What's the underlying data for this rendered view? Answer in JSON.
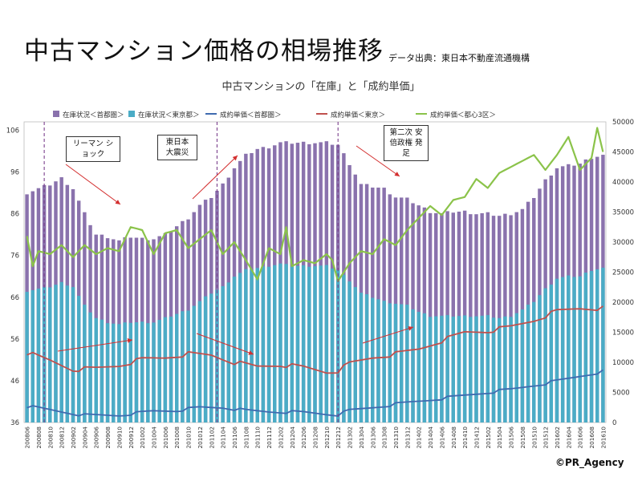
{
  "page": {
    "title": "中古マンション価格の相場推移",
    "source": "データ出典：東日本不動産流通機構",
    "credit": "©PR_Agency"
  },
  "annotations": {
    "lehman": "リーマン ショック",
    "quake": "東日本 大震災",
    "abe": "第二次 安倍政権 発足"
  },
  "colors": {
    "stock_metro": "#8a72ad",
    "stock_tokyo": "#4bacc6",
    "price_metro": "#3f6bb0",
    "price_tokyo": "#c0504d",
    "price_central": "#8bc34a",
    "arrow": "#d32f2f",
    "marker": "#7b3f8c"
  },
  "chart_data": {
    "type": "bar+line",
    "title": "中古マンションの「在庫」と「成約単価」",
    "legend": [
      "在庫状況＜首都圏＞",
      "在庫状況＜東京都＞",
      "成約単価＜首都圏＞",
      "成約単価＜東京＞",
      "成約単価＜都心3区＞"
    ],
    "legend_position": "top",
    "x_tick_labels": [
      "200806",
      "200808",
      "200810",
      "200812",
      "200902",
      "200904",
      "200906",
      "200908",
      "200910",
      "200912",
      "201002",
      "201004",
      "201006",
      "201008",
      "201010",
      "201012",
      "201102",
      "201104",
      "201106",
      "201108",
      "201110",
      "201112",
      "201202",
      "201204",
      "201206",
      "201208",
      "201210",
      "201212",
      "201302",
      "201304",
      "201306",
      "201308",
      "201310",
      "201312",
      "201402",
      "201404",
      "201406",
      "201408",
      "201410",
      "201412",
      "201502",
      "201504",
      "201506",
      "201508",
      "201510",
      "201512",
      "201602",
      "201604",
      "201606",
      "201608",
      "201610"
    ],
    "y_left_ticks": [
      36,
      46,
      56,
      66,
      76,
      86,
      96,
      106
    ],
    "y_left_range": [
      36,
      108
    ],
    "y_right_ticks": [
      0,
      5000,
      10000,
      15000,
      20000,
      25000,
      30000,
      35000,
      40000,
      45000,
      50000
    ],
    "y_right_range": [
      0,
      50000
    ],
    "event_markers": [
      {
        "label": "リーマン ショック",
        "at": "200809"
      },
      {
        "label": "東日本 大震災",
        "at": "201103"
      },
      {
        "label": "第二次 安倍政権 発足",
        "at": "201212"
      }
    ],
    "series": [
      {
        "name": "在庫状況＜首都圏＞",
        "axis": "left",
        "kind": "bar",
        "anchors": [
          [
            "200806",
            91
          ],
          [
            "200810",
            93
          ],
          [
            "200812",
            94.5
          ],
          [
            "200902",
            92
          ],
          [
            "200904",
            86
          ],
          [
            "200906",
            81
          ],
          [
            "200908",
            80.5
          ],
          [
            "200910",
            79.5
          ],
          [
            "200912",
            80.5
          ],
          [
            "201002",
            80
          ],
          [
            "201004",
            80
          ],
          [
            "201006",
            81
          ],
          [
            "201008",
            83
          ],
          [
            "201010",
            85
          ],
          [
            "201012",
            88
          ],
          [
            "201102",
            90
          ],
          [
            "201104",
            93
          ],
          [
            "201106",
            97
          ],
          [
            "201108",
            100
          ],
          [
            "201110",
            101.5
          ],
          [
            "201112",
            102
          ],
          [
            "201202",
            103
          ],
          [
            "201204",
            103
          ],
          [
            "201206",
            103
          ],
          [
            "201208",
            103
          ],
          [
            "201210",
            103
          ],
          [
            "201212",
            102.5
          ],
          [
            "201302",
            98
          ],
          [
            "201304",
            93
          ],
          [
            "201306",
            92.5
          ],
          [
            "201308",
            92
          ],
          [
            "201310",
            90
          ],
          [
            "201312",
            89.5
          ],
          [
            "201402",
            88
          ],
          [
            "201404",
            86.5
          ],
          [
            "201406",
            86
          ],
          [
            "201408",
            86.5
          ],
          [
            "201410",
            86.5
          ],
          [
            "201412",
            86
          ],
          [
            "201502",
            86
          ],
          [
            "201504",
            85.5
          ],
          [
            "201506",
            86
          ],
          [
            "201508",
            87
          ],
          [
            "201510",
            90
          ],
          [
            "201512",
            94
          ],
          [
            "201602",
            97
          ],
          [
            "201604",
            97.5
          ],
          [
            "201606",
            98
          ],
          [
            "201608",
            99.5
          ],
          [
            "201610",
            100
          ]
        ]
      },
      {
        "name": "在庫状況＜東京都＞",
        "axis": "left",
        "kind": "bar",
        "anchors": [
          [
            "200806",
            67.5
          ],
          [
            "200810",
            68.5
          ],
          [
            "200812",
            69.5
          ],
          [
            "200902",
            68.5
          ],
          [
            "200904",
            64
          ],
          [
            "200906",
            61
          ],
          [
            "200908",
            60
          ],
          [
            "200910",
            59.5
          ],
          [
            "200912",
            60
          ],
          [
            "201002",
            60
          ],
          [
            "201004",
            60
          ],
          [
            "201006",
            61
          ],
          [
            "201008",
            62
          ],
          [
            "201010",
            63
          ],
          [
            "201012",
            65
          ],
          [
            "201102",
            67
          ],
          [
            "201104",
            68.5
          ],
          [
            "201106",
            71
          ],
          [
            "201108",
            72.5
          ],
          [
            "201110",
            73
          ],
          [
            "201112",
            73.5
          ],
          [
            "201202",
            74
          ],
          [
            "201204",
            73.5
          ],
          [
            "201206",
            73.5
          ],
          [
            "201208",
            73.5
          ],
          [
            "201210",
            73.5
          ],
          [
            "201212",
            72.5
          ],
          [
            "201302",
            70
          ],
          [
            "201304",
            67
          ],
          [
            "201306",
            66
          ],
          [
            "201308",
            65
          ],
          [
            "201310",
            64.5
          ],
          [
            "201312",
            64
          ],
          [
            "201402",
            62.5
          ],
          [
            "201404",
            61.5
          ],
          [
            "201406",
            61.5
          ],
          [
            "201408",
            61.5
          ],
          [
            "201410",
            61.5
          ],
          [
            "201412",
            61.5
          ],
          [
            "201502",
            61.5
          ],
          [
            "201504",
            61
          ],
          [
            "201506",
            61.5
          ],
          [
            "201508",
            63
          ],
          [
            "201510",
            65
          ],
          [
            "201512",
            68
          ],
          [
            "201602",
            70.5
          ],
          [
            "201604",
            71
          ],
          [
            "201606",
            71
          ],
          [
            "201608",
            72.5
          ],
          [
            "201610",
            73
          ]
        ]
      },
      {
        "name": "成約単価＜首都圏＞",
        "axis": "right",
        "kind": "line",
        "anchors": [
          [
            "200806",
            2700
          ],
          [
            "200812",
            1800
          ],
          [
            "200904",
            1200
          ],
          [
            "200910",
            1200
          ],
          [
            "201004",
            1900
          ],
          [
            "201008",
            2000
          ],
          [
            "201012",
            2500
          ],
          [
            "201104",
            2500
          ],
          [
            "201108",
            2000
          ],
          [
            "201112",
            1800
          ],
          [
            "201206",
            1700
          ],
          [
            "201210",
            1400
          ],
          [
            "201212",
            1300
          ],
          [
            "201302",
            2000
          ],
          [
            "201306",
            2500
          ],
          [
            "201312",
            3300
          ],
          [
            "201406",
            4000
          ],
          [
            "201410",
            4500
          ],
          [
            "201506",
            5500
          ],
          [
            "201512",
            6500
          ],
          [
            "201610",
            8500
          ]
        ]
      },
      {
        "name": "成約単価＜東京＞",
        "axis": "right",
        "kind": "line",
        "anchors": [
          [
            "200806",
            11600
          ],
          [
            "200810",
            10300
          ],
          [
            "200902",
            8800
          ],
          [
            "200906",
            9000
          ],
          [
            "200910",
            9500
          ],
          [
            "201002",
            10500
          ],
          [
            "201006",
            10800
          ],
          [
            "201010",
            11400
          ],
          [
            "201102",
            11200
          ],
          [
            "201106",
            10000
          ],
          [
            "201110",
            9300
          ],
          [
            "201202",
            9600
          ],
          [
            "201206",
            9200
          ],
          [
            "201210",
            8400
          ],
          [
            "201212",
            8600
          ],
          [
            "201302",
            9800
          ],
          [
            "201306",
            10800
          ],
          [
            "201310",
            11400
          ],
          [
            "201402",
            12200
          ],
          [
            "201406",
            13600
          ],
          [
            "201410",
            15000
          ],
          [
            "201502",
            15200
          ],
          [
            "201506",
            15900
          ],
          [
            "201510",
            17000
          ],
          [
            "201602",
            18500
          ],
          [
            "201606",
            19000
          ],
          [
            "201610",
            19000
          ]
        ]
      },
      {
        "name": "成約単価＜都心3区＞",
        "axis": "right",
        "kind": "line",
        "anchors": [
          [
            "200806",
            31000
          ],
          [
            "200807",
            26000
          ],
          [
            "200808",
            28500
          ],
          [
            "200810",
            28000
          ],
          [
            "200812",
            29500
          ],
          [
            "200902",
            27500
          ],
          [
            "200904",
            29500
          ],
          [
            "200906",
            28000
          ],
          [
            "200908",
            29000
          ],
          [
            "200910",
            28500
          ],
          [
            "200912",
            32500
          ],
          [
            "201002",
            32000
          ],
          [
            "201004",
            28000
          ],
          [
            "201006",
            31500
          ],
          [
            "201008",
            32000
          ],
          [
            "201010",
            29000
          ],
          [
            "201012",
            30500
          ],
          [
            "201102",
            32000
          ],
          [
            "201104",
            28000
          ],
          [
            "201106",
            30000
          ],
          [
            "201108",
            27000
          ],
          [
            "201110",
            23800
          ],
          [
            "201112",
            29000
          ],
          [
            "201202",
            28000
          ],
          [
            "201203",
            32500
          ],
          [
            "201204",
            26000
          ],
          [
            "201206",
            27000
          ],
          [
            "201208",
            26500
          ],
          [
            "201210",
            28000
          ],
          [
            "201211",
            27000
          ],
          [
            "201212",
            23500
          ],
          [
            "201302",
            26500
          ],
          [
            "201304",
            28500
          ],
          [
            "201306",
            28000
          ],
          [
            "201308",
            30500
          ],
          [
            "201310",
            29500
          ],
          [
            "201312",
            32000
          ],
          [
            "201402",
            34000
          ],
          [
            "201404",
            36000
          ],
          [
            "201406",
            34500
          ],
          [
            "201408",
            37000
          ],
          [
            "201410",
            37500
          ],
          [
            "201412",
            40500
          ],
          [
            "201502",
            39000
          ],
          [
            "201504",
            41500
          ],
          [
            "201506",
            42500
          ],
          [
            "201508",
            43500
          ],
          [
            "201510",
            44500
          ],
          [
            "201512",
            42000
          ],
          [
            "201602",
            44500
          ],
          [
            "201604",
            47500
          ],
          [
            "201606",
            42000
          ],
          [
            "201608",
            44000
          ],
          [
            "201609",
            49000
          ],
          [
            "201610",
            45000
          ]
        ]
      }
    ]
  }
}
